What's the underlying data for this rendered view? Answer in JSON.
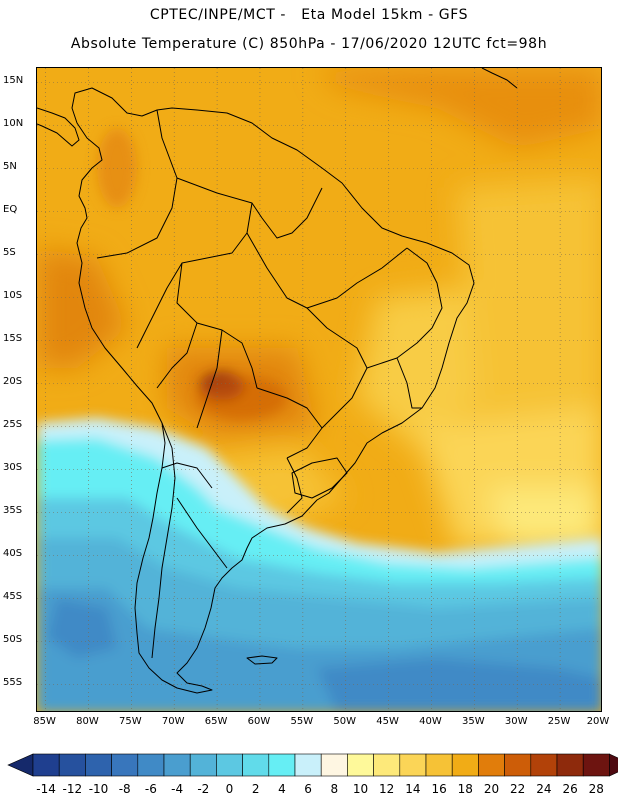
{
  "title": {
    "line1": "CPTEC/INPE/MCT -   Eta Model 15km - GFS",
    "line2": "Absolute Temperature (C) 850hPa - 17/06/2020 12UTC fct=98h"
  },
  "map": {
    "lat_labels": [
      "15N",
      "10N",
      "5N",
      "EQ",
      "5S",
      "10S",
      "15S",
      "20S",
      "25S",
      "30S",
      "35S",
      "40S",
      "45S",
      "50S",
      "55S"
    ],
    "lat_values": [
      15,
      10,
      5,
      0,
      -5,
      -10,
      -15,
      -20,
      -25,
      -30,
      -35,
      -40,
      -45,
      -50,
      -55
    ],
    "lon_labels": [
      "85W",
      "80W",
      "75W",
      "70W",
      "65W",
      "60W",
      "55W",
      "50W",
      "45W",
      "40W",
      "35W",
      "30W",
      "25W",
      "20W"
    ],
    "lon_values": [
      -85,
      -80,
      -75,
      -70,
      -65,
      -60,
      -55,
      -50,
      -45,
      -40,
      -35,
      -30,
      -25,
      -20
    ],
    "lat_range": [
      -58.3,
      16.7
    ],
    "lon_range": [
      -86,
      -20
    ],
    "grid": "dotted",
    "field": "850 hPa temperature shaded, warmest over central South America (~26 C near 20S 62W), coldest south of 40S (~-10 C)"
  },
  "colorbar": {
    "labels": [
      "-14",
      "-12",
      "-10",
      "-8",
      "-6",
      "-4",
      "-2",
      "0",
      "2",
      "4",
      "6",
      "8",
      "10",
      "12",
      "14",
      "16",
      "18",
      "20",
      "22",
      "24",
      "26",
      "28"
    ],
    "colors": [
      "#1f3f8f",
      "#26519e",
      "#2e63ad",
      "#3876bc",
      "#408ac6",
      "#4a9ecf",
      "#53b3d8",
      "#5cc8e2",
      "#61dbea",
      "#66eef4",
      "#c9f0fa",
      "#fef6e2",
      "#fef99a",
      "#fde97a",
      "#fbd557",
      "#f6c236",
      "#f1ac16",
      "#e17d0b",
      "#cd5d08",
      "#b24209",
      "#8e2a0c",
      "#6d1410"
    ],
    "low_color": "#15296b",
    "high_color": "#4e0910"
  }
}
